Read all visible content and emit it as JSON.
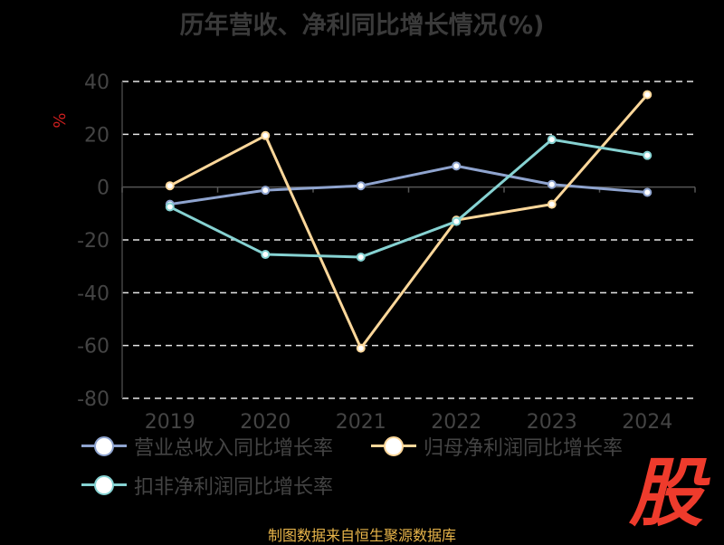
{
  "title": "历年营收、净利同比增长情况(%)",
  "source": "制图数据来自恒生聚源数据库",
  "watermark": "股",
  "chart_data": {
    "type": "line",
    "ylabel": "%",
    "ylim": [
      -80,
      40
    ],
    "yticks": [
      40,
      20,
      0,
      -20,
      -40,
      -60,
      -80
    ],
    "categories": [
      "2019",
      "2020",
      "2021",
      "2022",
      "2023",
      "2024"
    ],
    "grid": true,
    "legend": "bottom",
    "series": [
      {
        "name": "营业总收入同比增长率",
        "color": "#8fa4cf",
        "values": [
          -6.5,
          -1.2,
          0.5,
          8.0,
          1.0,
          -2.0
        ]
      },
      {
        "name": "归母净利润同比增长率",
        "color": "#fcd79a",
        "values": [
          0.5,
          19.5,
          -61.0,
          -12.5,
          -6.5,
          35.0
        ]
      },
      {
        "name": "扣非净利润同比增长率",
        "color": "#86d2d2",
        "values": [
          -7.5,
          -25.5,
          -26.5,
          -13.0,
          18.0,
          12.0
        ]
      }
    ]
  }
}
